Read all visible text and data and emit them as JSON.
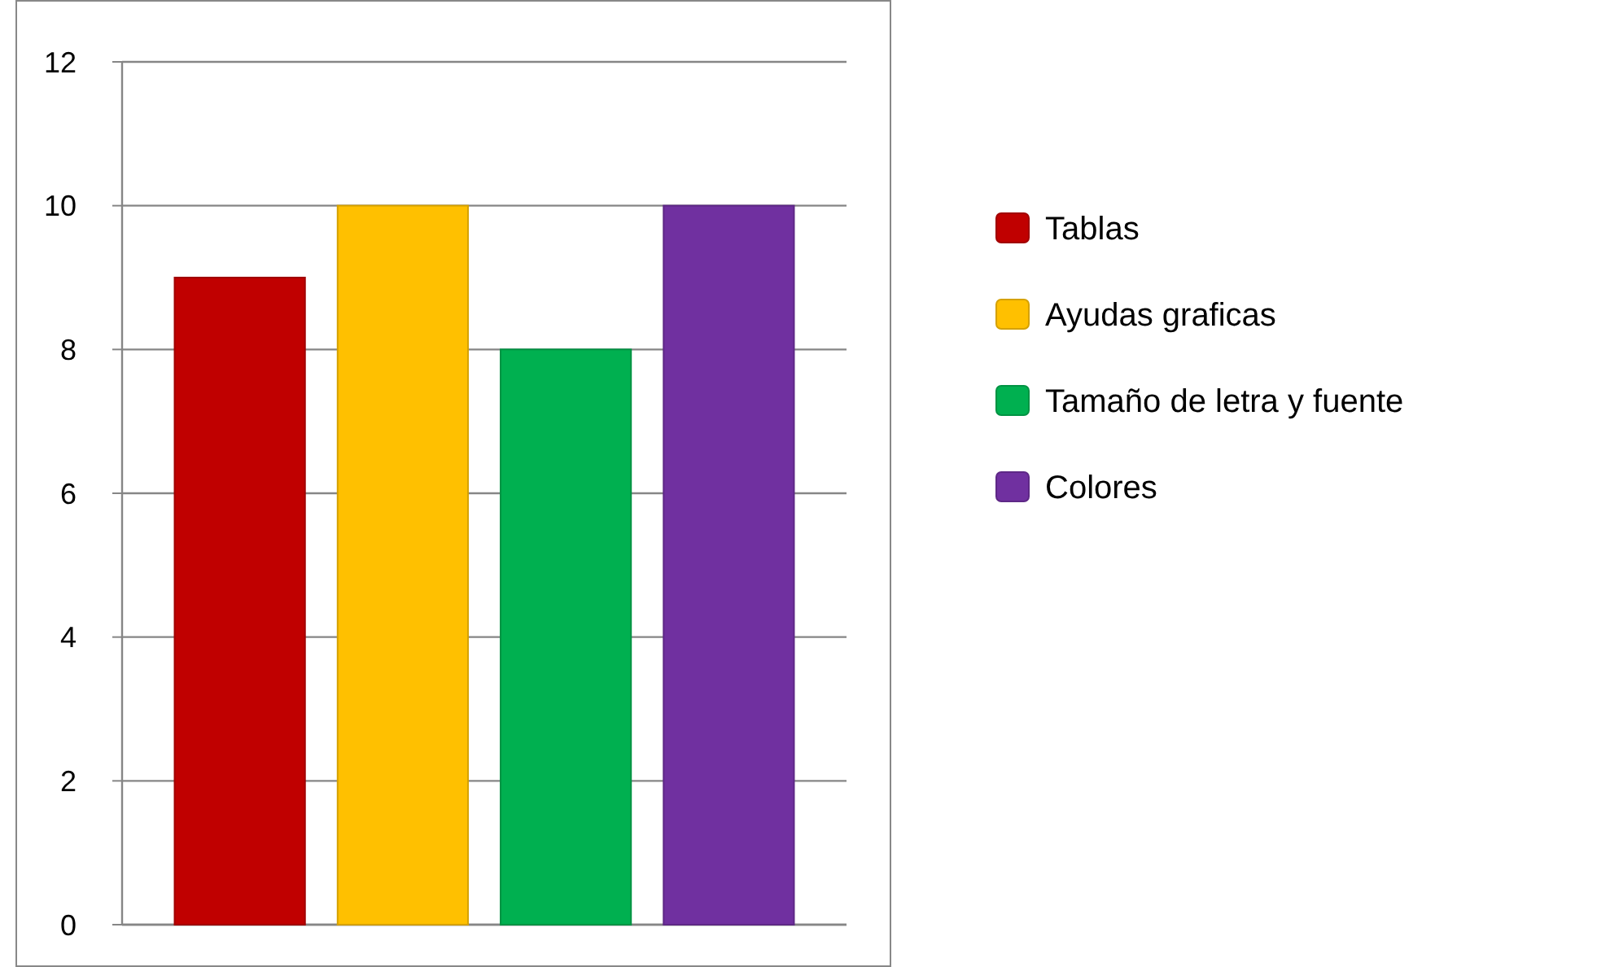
{
  "chart_data": {
    "type": "bar",
    "categories": [
      null
    ],
    "series": [
      {
        "name": "Tablas",
        "color": "#c00000",
        "values": [
          9
        ]
      },
      {
        "name": "Ayudas graficas",
        "color": "#ffc000",
        "values": [
          10
        ]
      },
      {
        "name": "Tamaño de letra y fuente",
        "color": "#00b050",
        "values": [
          8
        ]
      },
      {
        "name": "Colores",
        "color": "#7030a0",
        "values": [
          10
        ]
      }
    ],
    "ylim": [
      0,
      12
    ],
    "yticks": [
      0,
      2,
      4,
      6,
      8,
      10,
      12
    ],
    "grid": "y",
    "legend": "right"
  }
}
